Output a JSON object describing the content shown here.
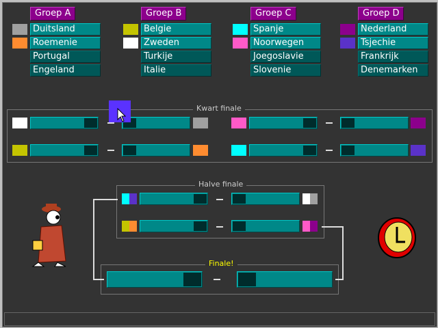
{
  "groups": [
    {
      "name": "Groep A",
      "teams": [
        "Duitsland",
        "Roemenie",
        "Portugal",
        "Engeland"
      ],
      "colors": [
        "#a0a0a0",
        "#ff8c30"
      ]
    },
    {
      "name": "Groep B",
      "teams": [
        "Belgie",
        "Zweden",
        "Turkije",
        "Italie"
      ],
      "colors": [
        "#c4c400",
        "#ffffff"
      ]
    },
    {
      "name": "Groep C",
      "teams": [
        "Spanje",
        "Noorwegen",
        "Joegoslavie",
        "Slovenie"
      ],
      "colors": [
        "#00ffff",
        "#ff5ac8"
      ]
    },
    {
      "name": "Groep D",
      "teams": [
        "Nederland",
        "Tsjechie",
        "Frankrijk",
        "Denemarken"
      ],
      "colors": [
        "#8c008c",
        "#5a32c8"
      ]
    }
  ],
  "quarter": {
    "title": "Kwart finale"
  },
  "semi": {
    "title": "Halve finale"
  },
  "final": {
    "title": "Finale!"
  },
  "dash": "–"
}
